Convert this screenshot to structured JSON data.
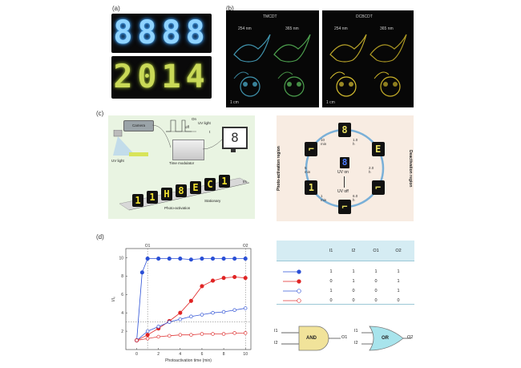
{
  "panels": {
    "a": "(a)",
    "b": "(b)",
    "c": "(c)",
    "d": "(d)"
  },
  "panel_a": {
    "top_display": "8888",
    "bottom_display": "2014"
  },
  "panel_b": {
    "left": {
      "title": "TMCDT",
      "wl1": "254 nm",
      "wl2": "365 nm",
      "scale": "1 cm"
    },
    "right": {
      "title": "DCBCDT",
      "wl1": "254 nm",
      "wl2": "365 nm",
      "scale": "1 cm"
    }
  },
  "panel_c_left": {
    "camera": "Camera",
    "uv_light": "UV light",
    "on": "On",
    "off": "off",
    "uv_light_pulse": "UV light",
    "t_axis": "t",
    "time_modulator": "Time modulator",
    "monitor_digit": "8",
    "film_digits": [
      "1",
      "1",
      "H",
      "8",
      "E",
      "C",
      "1"
    ],
    "photo_activation": "Photo-activation",
    "stationary": "Stationary",
    "t_min": "t/s"
  },
  "panel_c_right": {
    "left_region": "Photo-activation region",
    "right_region": "Deactivation region",
    "center_label": "UV on",
    "uv_off": "UV off",
    "center_digit": "8",
    "times": [
      "10 min",
      "1.0 h",
      "2.0 h",
      "6.0 h",
      "1 min",
      "5 min"
    ],
    "tiles": [
      "8",
      "E",
      "⌐",
      "⌐",
      "1",
      "⌐"
    ]
  },
  "plot": {
    "o1_label": "O1",
    "o2_label": "O2",
    "ylabel": "I/I₀",
    "xlabel": "Photoactivation time (min)",
    "y_ticks": [
      "2",
      "4",
      "6",
      "8",
      "10"
    ],
    "x_ticks": [
      "0",
      "2",
      "4",
      "6",
      "8",
      "10"
    ]
  },
  "chart_data": {
    "type": "line",
    "xlabel": "Photoactivation time (min)",
    "ylabel": "I/I₀",
    "xlim": [
      -1,
      10.5
    ],
    "ylim": [
      0,
      11
    ],
    "threshold": 3,
    "annotations": [
      {
        "label": "O1",
        "x": 1
      },
      {
        "label": "O2",
        "x": 10
      }
    ],
    "grid": false,
    "series": [
      {
        "color": "#2a4fd6",
        "filled": true,
        "x": [
          0,
          0.5,
          1,
          2,
          3,
          4,
          5,
          6,
          7,
          8,
          9,
          10
        ],
        "y": [
          1,
          8.4,
          9.9,
          9.9,
          9.9,
          9.9,
          9.8,
          9.9,
          9.9,
          9.9,
          9.9,
          9.9
        ]
      },
      {
        "color": "#e02424",
        "filled": true,
        "x": [
          0,
          1,
          2,
          3,
          4,
          5,
          6,
          7,
          8,
          9,
          10
        ],
        "y": [
          1,
          1.6,
          2.3,
          3.1,
          4.0,
          5.3,
          6.9,
          7.5,
          7.8,
          7.9,
          7.8
        ]
      },
      {
        "color": "#3a5bd8",
        "filled": false,
        "x": [
          0,
          1,
          2,
          3,
          4,
          5,
          6,
          7,
          8,
          9,
          10
        ],
        "y": [
          1,
          2.0,
          2.5,
          3.0,
          3.3,
          3.6,
          3.8,
          4.0,
          4.1,
          4.3,
          4.5
        ]
      },
      {
        "color": "#e03a3a",
        "filled": false,
        "x": [
          0,
          1,
          2,
          3,
          4,
          5,
          6,
          7,
          8,
          9,
          10
        ],
        "y": [
          1,
          1.2,
          1.4,
          1.5,
          1.6,
          1.6,
          1.7,
          1.7,
          1.7,
          1.8,
          1.8
        ]
      }
    ]
  },
  "truth_table": {
    "headers": [
      "I1",
      "I2",
      "O1",
      "O2"
    ],
    "rows": [
      {
        "color": "#2a4fd6",
        "filled": true,
        "values": [
          "1",
          "1",
          "1",
          "1"
        ]
      },
      {
        "color": "#e02424",
        "filled": true,
        "values": [
          "0",
          "1",
          "0",
          "1"
        ]
      },
      {
        "color": "#3a5bd8",
        "filled": false,
        "values": [
          "1",
          "0",
          "0",
          "1"
        ]
      },
      {
        "color": "#e03a3a",
        "filled": false,
        "values": [
          "0",
          "0",
          "0",
          "0"
        ]
      }
    ]
  },
  "gates": {
    "and": {
      "label": "AND",
      "in1": "I1",
      "in2": "I2",
      "out": "O1",
      "color": "#f1e39a"
    },
    "or": {
      "label": "OR",
      "in1": "I1",
      "in2": "I2",
      "out": "O2",
      "color": "#a8e4ec"
    }
  }
}
